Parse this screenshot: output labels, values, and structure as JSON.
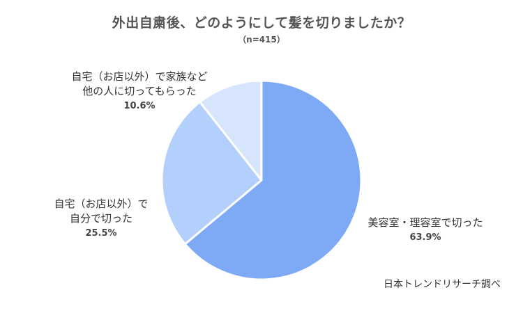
{
  "chart_data": {
    "type": "pie",
    "title": "外出自粛後、どのようにして髪を切りましたか？",
    "subtitle": "（n=415）",
    "slices": [
      {
        "label_lines": [
          "美容室・理容室で切った"
        ],
        "value": 63.9,
        "value_label": "63.9%",
        "color": "#7EA9F5"
      },
      {
        "label_lines": [
          "自宅（お店以外）で",
          "自分で切った"
        ],
        "value": 25.5,
        "value_label": "25.5%",
        "color": "#B3CFFB"
      },
      {
        "label_lines": [
          "自宅（お店以外）で家族など",
          "他の人に切ってもらった"
        ],
        "value": 10.6,
        "value_label": "10.6%",
        "color": "#D6E4FC"
      }
    ],
    "start_angle": "12 o'clock",
    "direction": "clockwise"
  },
  "footer": {
    "source": "日本トレンドリサーチ調べ"
  }
}
